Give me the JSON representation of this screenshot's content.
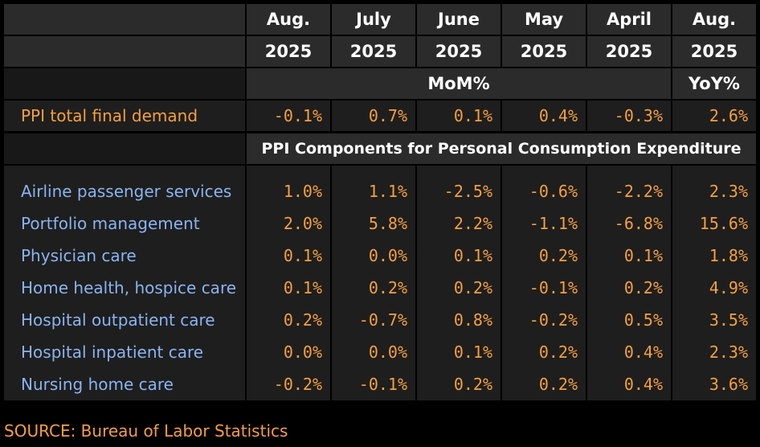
{
  "chart_data": {
    "type": "table",
    "columns": [
      {
        "line1": "Aug.",
        "line2": "2025"
      },
      {
        "line1": "July",
        "line2": "2025"
      },
      {
        "line1": "June",
        "line2": "2025"
      },
      {
        "line1": "May",
        "line2": "2025"
      },
      {
        "line1": "April",
        "line2": "2025"
      },
      {
        "line1": "Aug.",
        "line2": "2025"
      }
    ],
    "mom_label": "MoM%",
    "yoy_label": "YoY%",
    "headline": {
      "label": "PPI total final demand",
      "values": [
        "-0.1%",
        "0.7%",
        "0.1%",
        "0.4%",
        "-0.3%",
        "2.6%"
      ]
    },
    "section_title": "PPI Components for Personal Consumption Expenditure",
    "rows": [
      {
        "label": "Airline passenger services",
        "values": [
          "1.0%",
          "1.1%",
          "-2.5%",
          "-0.6%",
          "-2.2%",
          "2.3%"
        ]
      },
      {
        "label": "Portfolio management",
        "values": [
          "2.0%",
          "5.8%",
          "2.2%",
          "-1.1%",
          "-6.8%",
          "15.6%"
        ]
      },
      {
        "label": "Physician care",
        "values": [
          "0.1%",
          "0.0%",
          "0.1%",
          "0.2%",
          "0.1%",
          "1.8%"
        ]
      },
      {
        "label": "Home health, hospice care",
        "values": [
          "0.1%",
          "0.2%",
          "0.2%",
          "-0.1%",
          "0.2%",
          "4.9%"
        ]
      },
      {
        "label": "Hospital outpatient care",
        "values": [
          "0.2%",
          "-0.7%",
          "0.8%",
          "-0.2%",
          "0.5%",
          "3.5%"
        ]
      },
      {
        "label": "Hospital inpatient care",
        "values": [
          "0.0%",
          "0.0%",
          "0.1%",
          "0.2%",
          "0.4%",
          "2.3%"
        ]
      },
      {
        "label": "Nursing home care",
        "values": [
          "-0.2%",
          "-0.1%",
          "0.2%",
          "0.2%",
          "0.4%",
          "3.6%"
        ]
      }
    ]
  },
  "source": "SOURCE: Bureau of Labor Statistics",
  "colors": {
    "value": "#f5a03d",
    "headline_label": "#f5a03d",
    "component_label": "#8ab4f0",
    "header_bg": "#2b2b2b",
    "cell_bg": "#1e1e1e"
  }
}
